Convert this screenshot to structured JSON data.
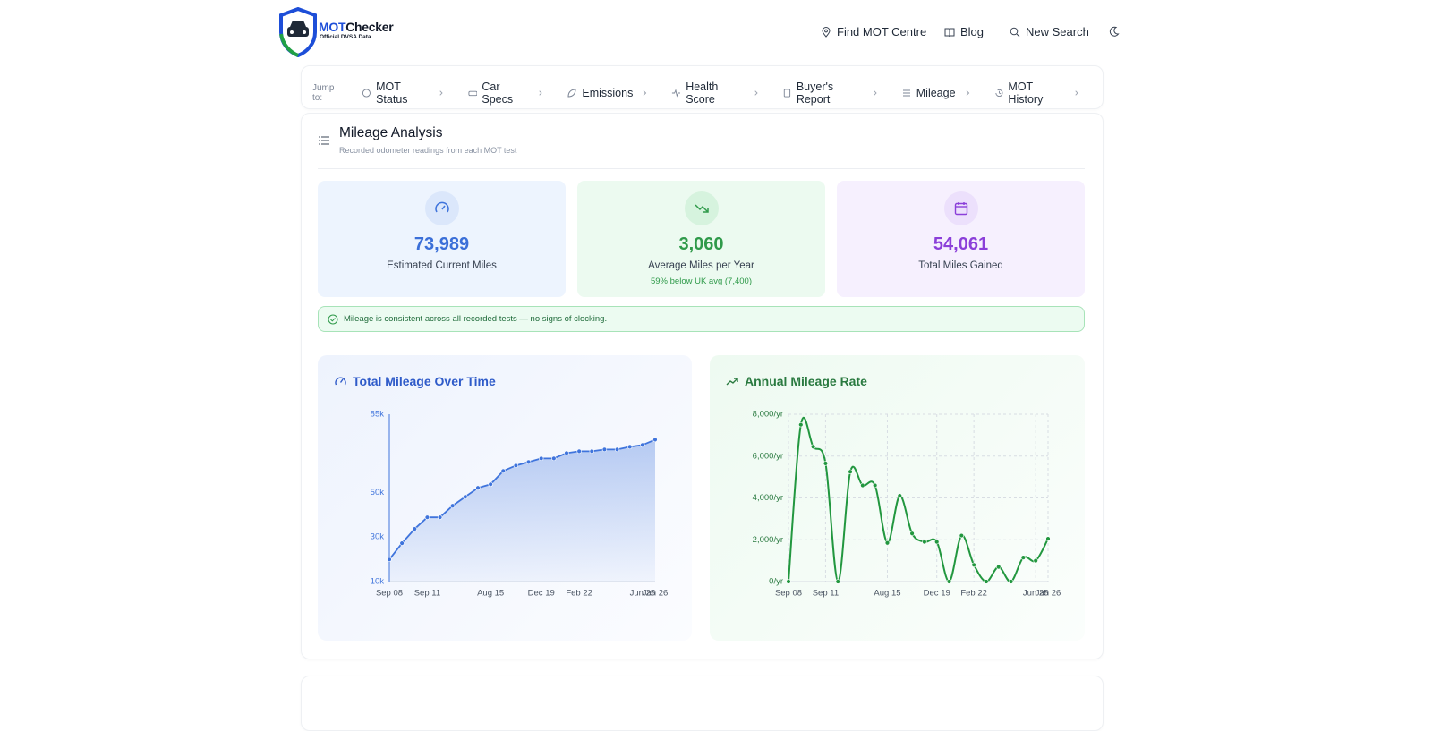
{
  "header": {
    "brand_main": "MOT",
    "brand_rest": "Checker",
    "brand_sub": "Official DVSA Data",
    "nav": [
      "Find MOT Centre",
      "Blog",
      "New Search"
    ]
  },
  "jump_bar": {
    "label": "Jump to:",
    "items": [
      "MOT Status",
      "Car Specs",
      "Emissions",
      "Health Score",
      "Buyer's Report",
      "Mileage",
      "MOT History"
    ]
  },
  "section": {
    "title": "Mileage Analysis",
    "subtitle": "Recorded odometer readings from each MOT test"
  },
  "stats": [
    {
      "value": "73,989",
      "label": "Estimated Current Miles"
    },
    {
      "value": "3,060",
      "label": "Average Miles per Year",
      "note": "59% below UK avg (7,400)"
    },
    {
      "value": "54,061",
      "label": "Total Miles Gained"
    }
  ],
  "alert": "Mileage is consistent across all recorded tests — no signs of clocking.",
  "chart_data": [
    {
      "type": "area",
      "title": "Total Mileage Over Time",
      "color": "#3f74dc",
      "grid": false,
      "categories": [
        "Sep 08",
        null,
        null,
        "Sep 11",
        null,
        null,
        null,
        null,
        "Aug 15",
        null,
        null,
        null,
        "Dec 19",
        null,
        null,
        "Feb 22",
        null,
        null,
        null,
        null,
        "Jun 25",
        "Jan 26"
      ],
      "values": [
        19900,
        27200,
        33600,
        38800,
        38800,
        44000,
        48000,
        52000,
        53600,
        59600,
        62000,
        63600,
        65200,
        65200,
        67600,
        68400,
        68400,
        69200,
        69200,
        70400,
        71200,
        73600
      ],
      "ylim": [
        10000,
        85000
      ],
      "yticks": [
        {
          "value": 10000,
          "label": "10k"
        },
        {
          "value": 30000,
          "label": "30k"
        },
        {
          "value": 50000,
          "label": "50k"
        },
        {
          "value": 85000,
          "label": "85k"
        }
      ]
    },
    {
      "type": "line",
      "title": "Annual Mileage Rate",
      "color": "#22973f",
      "grid": true,
      "categories": [
        "Sep 08",
        null,
        null,
        "Sep 11",
        null,
        null,
        null,
        null,
        "Aug 15",
        null,
        null,
        null,
        "Dec 19",
        null,
        null,
        "Feb 22",
        null,
        null,
        null,
        null,
        "Jun 25",
        "Jan 26"
      ],
      "values": [
        0,
        7500,
        6450,
        5650,
        0,
        5250,
        4600,
        4600,
        1850,
        4100,
        2300,
        1900,
        1900,
        0,
        2200,
        800,
        0,
        700,
        0,
        1150,
        1000,
        2050
      ],
      "ylim": [
        0,
        8000
      ],
      "yticks": [
        {
          "value": 0,
          "label": "0/yr"
        },
        {
          "value": 2000,
          "label": "2,000/yr"
        },
        {
          "value": 4000,
          "label": "4,000/yr"
        },
        {
          "value": 6000,
          "label": "6,000/yr"
        },
        {
          "value": 8000,
          "label": "8,000/yr"
        }
      ]
    }
  ]
}
